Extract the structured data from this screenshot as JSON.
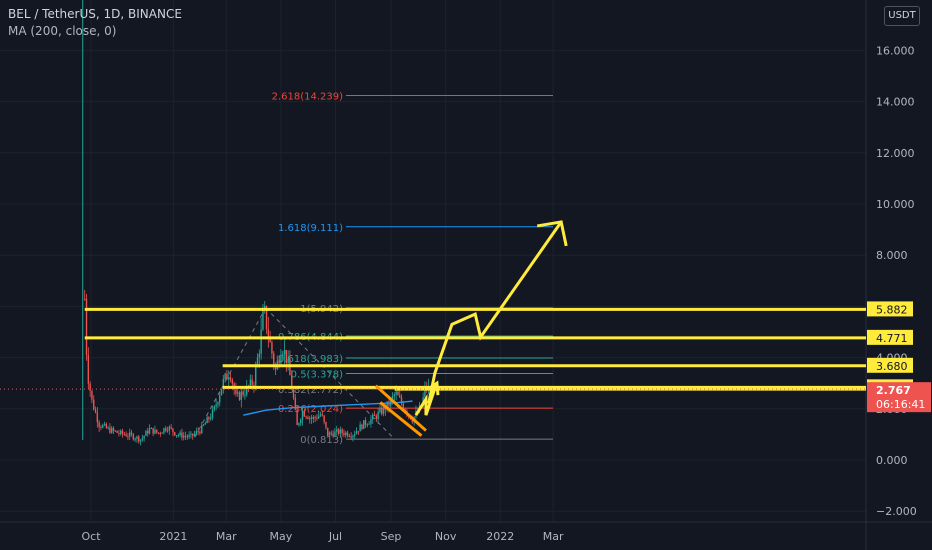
{
  "header": {
    "symbol_line": "BEL / TetherUS, 1D, BINANCE",
    "indicator_line": "MA (200, close, 0)"
  },
  "currency_button": "USDT",
  "colors": {
    "background": "#131722",
    "up_candle": "#26a69a",
    "down_candle": "#ef5350",
    "ma_line": "#2196f3",
    "annotation_yellow": "#ffeb3b",
    "annotation_orange": "#ff9800",
    "fib_red": "#f44336",
    "fib_blue": "#2196f3",
    "fib_teal": "#26a69a",
    "fib_gray": "#787b86",
    "grid": "#1e222d"
  },
  "chart_data": {
    "type": "candlestick",
    "ylim": [
      -2.5,
      17
    ],
    "y_ticks": [
      "16.000",
      "14.000",
      "12.000",
      "10.000",
      "8.000",
      "6.000",
      "4.000",
      "2.000",
      "0.000",
      "−2.000"
    ],
    "x_ticks": [
      "Oct",
      "2021",
      "Mar",
      "May",
      "Jul",
      "Sep",
      "Nov",
      "2022",
      "Mar"
    ],
    "grid": true,
    "series_close_path": [
      [
        "2020-09-24",
        6.3
      ],
      [
        "2020-09-25",
        4.8
      ],
      [
        "2020-09-28",
        3.2
      ],
      [
        "2020-10-02",
        2.3
      ],
      [
        "2020-10-10",
        1.4
      ],
      [
        "2020-10-20",
        1.2
      ],
      [
        "2020-11-01",
        1.05
      ],
      [
        "2020-11-15",
        0.95
      ],
      [
        "2020-11-26",
        0.8
      ],
      [
        "2020-12-05",
        1.2
      ],
      [
        "2020-12-15",
        1.05
      ],
      [
        "2020-12-25",
        1.3
      ],
      [
        "2021-01-05",
        1.0
      ],
      [
        "2021-01-20",
        0.9
      ],
      [
        "2021-02-01",
        1.2
      ],
      [
        "2021-02-15",
        1.9
      ],
      [
        "2021-02-25",
        3.0
      ],
      [
        "2021-03-05",
        3.5
      ],
      [
        "2021-03-12",
        2.4
      ],
      [
        "2021-03-25",
        2.8
      ],
      [
        "2021-04-01",
        3.1
      ],
      [
        "2021-04-08",
        4.6
      ],
      [
        "2021-04-12",
        5.9
      ],
      [
        "2021-04-18",
        4.7
      ],
      [
        "2021-04-25",
        3.5
      ],
      [
        "2021-05-02",
        4.5
      ],
      [
        "2021-05-08",
        3.9
      ],
      [
        "2021-05-14",
        2.7
      ],
      [
        "2021-05-19",
        1.3
      ],
      [
        "2021-05-25",
        1.9
      ],
      [
        "2021-06-05",
        1.6
      ],
      [
        "2021-06-15",
        1.8
      ],
      [
        "2021-06-22",
        1.0
      ],
      [
        "2021-07-05",
        1.1
      ],
      [
        "2021-07-20",
        1.0
      ],
      [
        "2021-08-01",
        1.4
      ],
      [
        "2021-08-15",
        1.7
      ],
      [
        "2021-08-30",
        2.2
      ],
      [
        "2021-09-06",
        2.6
      ],
      [
        "2021-09-15",
        2.1
      ],
      [
        "2021-09-25",
        1.6
      ],
      [
        "2021-10-05",
        2.1
      ],
      [
        "2021-10-10",
        2.9
      ],
      [
        "2021-10-13",
        2.767
      ]
    ],
    "ma_label": "MA (200, close, 0)",
    "fib_levels": [
      {
        "label": "2.618(14.239)",
        "value": 14.239,
        "color": "#f44336"
      },
      {
        "label": "1.618(9.111)",
        "value": 9.111,
        "color": "#2196f3"
      },
      {
        "label": "1(5.942)",
        "value": 5.942,
        "color": "#787b86"
      },
      {
        "label": "0.786(4.844)",
        "value": 4.844,
        "color": "#26a69a"
      },
      {
        "label": "0.618(3.983)",
        "value": 3.983,
        "color": "#26a69a"
      },
      {
        "label": "0.5(3.378)",
        "value": 3.378,
        "color": "#26a69a"
      },
      {
        "label": "0.382(2.772)",
        "value": 2.772,
        "color": "#787b86"
      },
      {
        "label": "0.236(2.024)",
        "value": 2.024,
        "color": "#f44336"
      },
      {
        "label": "0(0.813)",
        "value": 0.813,
        "color": "#787b86"
      }
    ],
    "horizontal_levels": [
      {
        "label": "5.882",
        "value": 5.882
      },
      {
        "label": "4.771",
        "value": 4.771
      },
      {
        "label": "3.680",
        "value": 3.68
      },
      {
        "label": "2.838",
        "value": 2.838
      }
    ],
    "breakout_level": 2.767,
    "price_tag": {
      "label": "2.767",
      "countdown": "06:16:41",
      "value": 2.767
    },
    "projection_path": [
      [
        "2021-10-13",
        2.2
      ],
      [
        "2021-10-20",
        3.4
      ],
      [
        "2021-11-08",
        5.3
      ],
      [
        "2021-12-04",
        5.7
      ],
      [
        "2021-12-10",
        4.8
      ],
      [
        "2022-03-10",
        9.3
      ]
    ]
  }
}
